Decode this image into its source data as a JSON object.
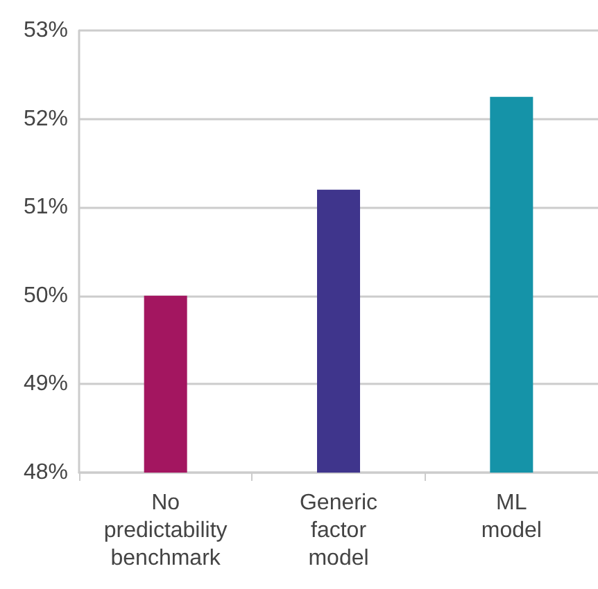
{
  "chart_data": {
    "type": "bar",
    "categories": [
      "No\npredictability\nbenchmark",
      "Generic\nfactor\nmodel",
      "ML\nmodel"
    ],
    "values": [
      50.0,
      51.2,
      52.25
    ],
    "colors": [
      "#a31660",
      "#3f358c",
      "#1593a8"
    ],
    "ylim": [
      48,
      53
    ],
    "yticks": [
      {
        "value": 48,
        "label": "48%"
      },
      {
        "value": 49,
        "label": "49%"
      },
      {
        "value": 50,
        "label": "50%"
      },
      {
        "value": 51,
        "label": "51%"
      },
      {
        "value": 52,
        "label": "52%"
      },
      {
        "value": 53,
        "label": "53%"
      }
    ],
    "grid": "y"
  }
}
